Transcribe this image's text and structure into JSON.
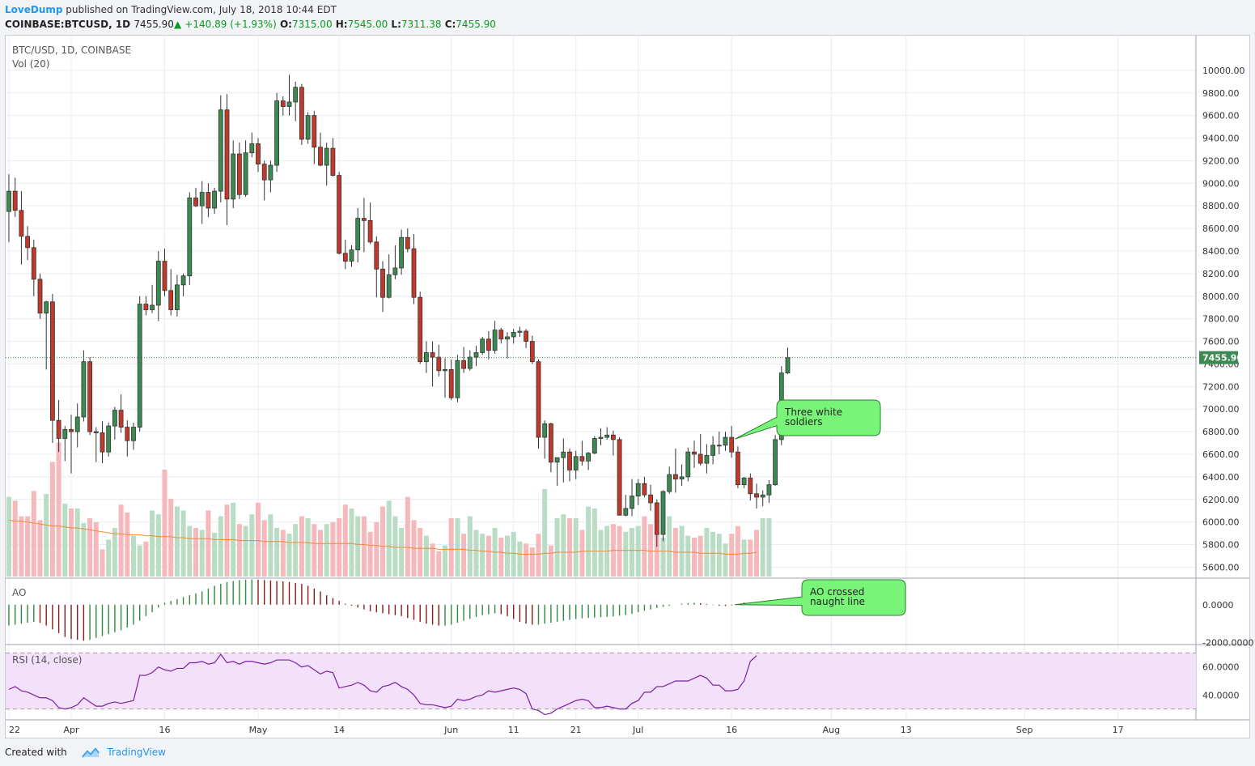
{
  "header": {
    "author": "LoveDump",
    "published_text": "published on TradingView.com, July 18, 2018 10:44 EDT"
  },
  "quote": {
    "symbol": "COINBASE:BTCUSD, 1D",
    "last": "7455.90",
    "change_arrow": "▲",
    "change": "+140.89 (+1.93%)",
    "o_label": "O:",
    "o": "7315.00",
    "h_label": "H:",
    "h": "7545.00",
    "l_label": "L:",
    "l": "7311.38",
    "c_label": "C:",
    "c": "7455.90"
  },
  "footer": {
    "created_with": "Created with",
    "brand": "TradingView"
  },
  "colors": {
    "up": "#3c8a52",
    "down": "#c0392b",
    "vol_up": "#b8dcc4",
    "vol_down": "#f5b8bc",
    "vol_ma": "#f08a3b",
    "rsi_line": "#7b1fa2",
    "rsi_band": "#f3e1fb",
    "callout_fill": "#78f578",
    "callout_stroke": "#2e7d32",
    "last_price_bg": "#3c8a52"
  },
  "chart_data": {
    "type": "candlestick",
    "title": "BTC/USD, 1D, COINBASE",
    "volume_label": "Vol (20)",
    "ylim": [
      5560,
      10150
    ],
    "y_ticks": [
      5600,
      5800,
      6000,
      6200,
      6400,
      6600,
      6800,
      7000,
      7200,
      7400,
      7600,
      7800,
      8000,
      8200,
      8400,
      8600,
      8800,
      9000,
      9200,
      9400,
      9600,
      9800,
      10000
    ],
    "y_tick_labels": [
      "5600.00",
      "5800.00",
      "6000.00",
      "6200.00",
      "6400.00",
      "6600.00",
      "6800.00",
      "7000.00",
      "7200.00",
      "7400.00",
      "7600.00",
      "7800.00",
      "8000.00",
      "8200.00",
      "8400.00",
      "8600.00",
      "8800.00",
      "9000.00",
      "9200.00",
      "9400.00",
      "9600.00",
      "9800.00",
      "10000.00"
    ],
    "last_price": 7455.9,
    "last_price_label": "7455.90",
    "x_ticks": [
      {
        "label": "22",
        "index": 0
      },
      {
        "label": "Apr",
        "index": 10
      },
      {
        "label": "16",
        "index": 25
      },
      {
        "label": "May",
        "index": 40
      },
      {
        "label": "14",
        "index": 53
      },
      {
        "label": "Jun",
        "index": 71
      },
      {
        "label": "11",
        "index": 81
      },
      {
        "label": "21",
        "index": 91
      },
      {
        "label": "Jul",
        "index": 101
      },
      {
        "label": "16",
        "index": 116
      },
      {
        "label": "Aug",
        "index": 132
      },
      {
        "label": "13",
        "index": 144
      },
      {
        "label": "Sep",
        "index": 163
      },
      {
        "label": "17",
        "index": 178
      }
    ],
    "candles": [
      [
        8750,
        9080,
        8480,
        8930
      ],
      [
        8930,
        9050,
        8700,
        8760
      ],
      [
        8760,
        8930,
        8280,
        8530
      ],
      [
        8530,
        8620,
        8320,
        8430
      ],
      [
        8430,
        8500,
        8000,
        8150
      ],
      [
        8150,
        8200,
        7800,
        7850
      ],
      [
        7850,
        7960,
        7350,
        7950
      ],
      [
        7950,
        8020,
        6700,
        6900
      ],
      [
        6900,
        7080,
        6620,
        6740
      ],
      [
        6740,
        6850,
        6540,
        6820
      ],
      [
        6820,
        6950,
        6430,
        6800
      ],
      [
        6800,
        7050,
        6660,
        6930
      ],
      [
        6930,
        7520,
        6890,
        7420
      ],
      [
        7420,
        7460,
        6770,
        6800
      ],
      [
        6800,
        6840,
        6530,
        6790
      ],
      [
        6790,
        6890,
        6520,
        6620
      ],
      [
        6620,
        6880,
        6580,
        6850
      ],
      [
        6850,
        7020,
        6730,
        6990
      ],
      [
        6990,
        7130,
        6790,
        6840
      ],
      [
        6840,
        6900,
        6580,
        6720
      ],
      [
        6720,
        6880,
        6640,
        6840
      ],
      [
        6840,
        8000,
        6800,
        7930
      ],
      [
        7930,
        8000,
        7830,
        7880
      ],
      [
        7880,
        8100,
        7850,
        7920
      ],
      [
        7920,
        8400,
        7780,
        8310
      ],
      [
        8310,
        8420,
        8000,
        8050
      ],
      [
        8050,
        8240,
        7830,
        7880
      ],
      [
        7880,
        8190,
        7820,
        8100
      ],
      [
        8100,
        8200,
        8000,
        8180
      ],
      [
        8180,
        8920,
        8100,
        8870
      ],
      [
        8870,
        8960,
        8790,
        8800
      ],
      [
        8800,
        9020,
        8640,
        8920
      ],
      [
        8920,
        9000,
        8700,
        8780
      ],
      [
        8780,
        8960,
        8730,
        8930
      ],
      [
        8930,
        9780,
        8830,
        9650
      ],
      [
        9650,
        9790,
        8630,
        8860
      ],
      [
        8860,
        9380,
        8780,
        9260
      ],
      [
        9260,
        9360,
        8860,
        8900
      ],
      [
        8900,
        9380,
        8880,
        9270
      ],
      [
        9270,
        9450,
        9230,
        9350
      ],
      [
        9350,
        9400,
        9100,
        9170
      ],
      [
        9170,
        9200,
        8850,
        9030
      ],
      [
        9030,
        9200,
        8920,
        9160
      ],
      [
        9160,
        9800,
        9100,
        9730
      ],
      [
        9730,
        9770,
        9600,
        9680
      ],
      [
        9680,
        9960,
        9600,
        9720
      ],
      [
        9720,
        9900,
        9550,
        9850
      ],
      [
        9850,
        9880,
        9340,
        9390
      ],
      [
        9390,
        9630,
        9350,
        9600
      ],
      [
        9600,
        9640,
        9170,
        9320
      ],
      [
        9320,
        9450,
        9150,
        9160
      ],
      [
        9160,
        9360,
        8980,
        9310
      ],
      [
        9310,
        9400,
        9060,
        9070
      ],
      [
        9070,
        9100,
        8370,
        8380
      ],
      [
        8380,
        8500,
        8240,
        8310
      ],
      [
        8310,
        8450,
        8260,
        8410
      ],
      [
        8410,
        8780,
        8300,
        8690
      ],
      [
        8690,
        8870,
        8390,
        8670
      ],
      [
        8670,
        8830,
        8460,
        8480
      ],
      [
        8480,
        8530,
        7990,
        8240
      ],
      [
        8240,
        8310,
        7860,
        7990
      ],
      [
        7990,
        8370,
        7980,
        8190
      ],
      [
        8190,
        8450,
        8150,
        8250
      ],
      [
        8250,
        8590,
        8190,
        8520
      ],
      [
        8520,
        8600,
        8390,
        8420
      ],
      [
        8420,
        8550,
        7930,
        7990
      ],
      [
        7990,
        8040,
        7400,
        7420
      ],
      [
        7420,
        7600,
        7320,
        7500
      ],
      [
        7500,
        7600,
        7200,
        7460
      ],
      [
        7460,
        7570,
        7290,
        7340
      ],
      [
        7340,
        7450,
        7100,
        7350
      ],
      [
        7350,
        7440,
        7080,
        7100
      ],
      [
        7100,
        7480,
        7060,
        7430
      ],
      [
        7430,
        7550,
        7320,
        7360
      ],
      [
        7360,
        7520,
        7340,
        7460
      ],
      [
        7460,
        7560,
        7380,
        7500
      ],
      [
        7500,
        7640,
        7480,
        7620
      ],
      [
        7620,
        7690,
        7440,
        7520
      ],
      [
        7520,
        7780,
        7490,
        7700
      ],
      [
        7700,
        7720,
        7580,
        7620
      ],
      [
        7620,
        7680,
        7450,
        7640
      ],
      [
        7640,
        7710,
        7580,
        7680
      ],
      [
        7680,
        7730,
        7640,
        7690
      ],
      [
        7690,
        7710,
        7540,
        7600
      ],
      [
        7600,
        7650,
        7400,
        7420
      ],
      [
        7420,
        7440,
        6650,
        6750
      ],
      [
        6750,
        6900,
        6560,
        6870
      ],
      [
        6870,
        6880,
        6440,
        6530
      ],
      [
        6530,
        6560,
        6320,
        6570
      ],
      [
        6570,
        6740,
        6350,
        6620
      ],
      [
        6620,
        6650,
        6360,
        6460
      ],
      [
        6460,
        6630,
        6380,
        6580
      ],
      [
        6580,
        6720,
        6500,
        6540
      ],
      [
        6540,
        6620,
        6460,
        6610
      ],
      [
        6610,
        6760,
        6600,
        6740
      ],
      [
        6740,
        6830,
        6680,
        6750
      ],
      [
        6750,
        6840,
        6730,
        6770
      ],
      [
        6770,
        6810,
        6590,
        6730
      ],
      [
        6730,
        6750,
        6060,
        6060
      ],
      [
        6060,
        6240,
        6050,
        6120
      ],
      [
        6120,
        6380,
        6050,
        6230
      ],
      [
        6230,
        6380,
        6150,
        6340
      ],
      [
        6340,
        6400,
        6220,
        6240
      ],
      [
        6240,
        6330,
        6100,
        6170
      ],
      [
        6170,
        6200,
        5780,
        5890
      ],
      [
        5890,
        6280,
        5830,
        6270
      ],
      [
        6270,
        6490,
        6250,
        6420
      ],
      [
        6420,
        6650,
        6260,
        6380
      ],
      [
        6380,
        6510,
        6320,
        6400
      ],
      [
        6400,
        6660,
        6360,
        6620
      ],
      [
        6620,
        6720,
        6480,
        6600
      ],
      [
        6600,
        6780,
        6500,
        6520
      ],
      [
        6520,
        6690,
        6430,
        6590
      ],
      [
        6590,
        6760,
        6510,
        6680
      ],
      [
        6680,
        6800,
        6600,
        6680
      ],
      [
        6680,
        6800,
        6630,
        6750
      ],
      [
        6750,
        6850,
        6570,
        6620
      ],
      [
        6620,
        6670,
        6300,
        6330
      ],
      [
        6330,
        6400,
        6300,
        6390
      ],
      [
        6390,
        6430,
        6190,
        6250
      ],
      [
        6250,
        6340,
        6120,
        6220
      ],
      [
        6220,
        6280,
        6140,
        6240
      ],
      [
        6240,
        6370,
        6170,
        6330
      ],
      [
        6330,
        6770,
        6320,
        6730
      ],
      [
        6730,
        7380,
        6680,
        7320
      ],
      [
        7320,
        7545,
        7311,
        7456
      ]
    ],
    "volume": [
      0.82,
      0.78,
      0.62,
      0.62,
      0.88,
      0.58,
      0.85,
      1.18,
      1.38,
      0.75,
      0.7,
      0.7,
      0.55,
      0.6,
      0.56,
      0.28,
      0.38,
      0.5,
      0.74,
      0.66,
      0.42,
      0.32,
      0.36,
      0.68,
      0.64,
      1.1,
      0.8,
      0.72,
      0.68,
      0.52,
      0.5,
      0.48,
      0.68,
      0.45,
      0.62,
      0.74,
      0.76,
      0.54,
      0.52,
      0.64,
      0.76,
      0.58,
      0.64,
      0.5,
      0.48,
      0.44,
      0.54,
      0.62,
      0.6,
      0.54,
      0.48,
      0.54,
      0.56,
      0.6,
      0.74,
      0.7,
      0.62,
      0.62,
      0.46,
      0.56,
      0.72,
      0.78,
      0.62,
      0.5,
      0.82,
      0.58,
      0.5,
      0.42,
      0.34,
      0.26,
      0.32,
      0.6,
      0.6,
      0.44,
      0.62,
      0.48,
      0.44,
      0.42,
      0.5,
      0.4,
      0.42,
      0.46,
      0.36,
      0.34,
      0.3,
      0.44,
      0.9,
      0.32,
      0.6,
      0.64,
      0.6,
      0.6,
      0.48,
      0.72,
      0.7,
      0.48,
      0.52,
      0.54,
      0.52,
      0.46,
      0.5,
      0.52,
      0.62,
      0.54,
      0.46,
      0.4,
      0.62,
      0.5,
      0.52,
      0.42,
      0.4,
      0.42,
      0.5,
      0.46,
      0.44,
      0.34,
      0.44,
      0.52,
      0.38,
      0.38,
      0.48,
      0.6,
      0.6
    ],
    "volume_ma": [
      0.58,
      0.57,
      0.57,
      0.56,
      0.55,
      0.54,
      0.53,
      0.52,
      0.52,
      0.51,
      0.5,
      0.5,
      0.49,
      0.48,
      0.47,
      0.46,
      0.45,
      0.44,
      0.44,
      0.43,
      0.43,
      0.43,
      0.42,
      0.42,
      0.41,
      0.41,
      0.41,
      0.4,
      0.4,
      0.39,
      0.39,
      0.39,
      0.39,
      0.38,
      0.38,
      0.38,
      0.38,
      0.37,
      0.37,
      0.37,
      0.37,
      0.36,
      0.36,
      0.36,
      0.36,
      0.35,
      0.35,
      0.35,
      0.35,
      0.34,
      0.34,
      0.34,
      0.34,
      0.34,
      0.34,
      0.34,
      0.33,
      0.33,
      0.32,
      0.32,
      0.31,
      0.31,
      0.3,
      0.3,
      0.3,
      0.29,
      0.29,
      0.29,
      0.29,
      0.28,
      0.28,
      0.28,
      0.28,
      0.28,
      0.27,
      0.27,
      0.26,
      0.26,
      0.25,
      0.25,
      0.24,
      0.24,
      0.23,
      0.23,
      0.23,
      0.23,
      0.24,
      0.24,
      0.25,
      0.25,
      0.25,
      0.25,
      0.26,
      0.26,
      0.26,
      0.26,
      0.26,
      0.27,
      0.27,
      0.27,
      0.27,
      0.27,
      0.27,
      0.26,
      0.26,
      0.26,
      0.26,
      0.25,
      0.25,
      0.25,
      0.25,
      0.24,
      0.24,
      0.24,
      0.24,
      0.23,
      0.23,
      0.23,
      0.24,
      0.24,
      0.25
    ],
    "ao": {
      "label": "AO",
      "ylim": [
        -2100,
        1400
      ],
      "y_ticks": [
        0,
        -2000
      ],
      "y_tick_labels": [
        "0.0000",
        "-2000.0000"
      ],
      "values": [
        -1100,
        -1050,
        -1000,
        -950,
        -900,
        -950,
        -1100,
        -1300,
        -1500,
        -1700,
        -1800,
        -1850,
        -1900,
        -1850,
        -1750,
        -1650,
        -1550,
        -1450,
        -1350,
        -1200,
        -1050,
        -850,
        -600,
        -400,
        -150,
        100,
        200,
        300,
        400,
        500,
        600,
        700,
        850,
        1000,
        1100,
        1200,
        1250,
        1300,
        1320,
        1330,
        1320,
        1300,
        1280,
        1250,
        1230,
        1200,
        1150,
        1100,
        1000,
        850,
        700,
        500,
        350,
        200,
        50,
        -50,
        -150,
        -250,
        -350,
        -400,
        -450,
        -500,
        -550,
        -600,
        -700,
        -800,
        -900,
        -1000,
        -1050,
        -1100,
        -1100,
        -1050,
        -950,
        -850,
        -750,
        -650,
        -550,
        -500,
        -450,
        -500,
        -600,
        -750,
        -900,
        -1000,
        -1050,
        -1050,
        -1000,
        -950,
        -900,
        -850,
        -800,
        -750,
        -720,
        -700,
        -680,
        -660,
        -640,
        -620,
        -580,
        -540,
        -480,
        -400,
        -320,
        -250,
        -180,
        -120,
        -60,
        0,
        50,
        80,
        100,
        80,
        40,
        -20,
        -60,
        -70,
        -40,
        40,
        120
      ]
    },
    "rsi": {
      "label": "RSI (14, close)",
      "ylim": [
        24,
        76
      ],
      "band": [
        30,
        70
      ],
      "y_ticks": [
        40,
        60
      ],
      "y_tick_labels": [
        "40.0000",
        "60.0000"
      ],
      "values": [
        44,
        46,
        43,
        42,
        40,
        38,
        38,
        36,
        31,
        30,
        31,
        33,
        38,
        35,
        32,
        32,
        34,
        35,
        34,
        35,
        36,
        54,
        54,
        56,
        60,
        58,
        57,
        59,
        59,
        63,
        63,
        64,
        62,
        63,
        69,
        63,
        64,
        62,
        64,
        64,
        63,
        62,
        63,
        65,
        65,
        65,
        63,
        60,
        61,
        58,
        55,
        57,
        56,
        45,
        46,
        47,
        49,
        47,
        43,
        42,
        46,
        47,
        49,
        46,
        44,
        40,
        34,
        33,
        33,
        32,
        31,
        32,
        37,
        36,
        37,
        39,
        40,
        43,
        42,
        43,
        44,
        45,
        44,
        41,
        30,
        29,
        26,
        27,
        30,
        32,
        34,
        36,
        37,
        36,
        31,
        31,
        32,
        31,
        30,
        30,
        34,
        36,
        42,
        42,
        46,
        46,
        48,
        50,
        50,
        50,
        52,
        54,
        52,
        47,
        47,
        43,
        43,
        44,
        50,
        64,
        68
      ]
    },
    "annotations": [
      {
        "text_lines": [
          "Three white",
          "soldiers"
        ],
        "target_index": 116,
        "target_value": 6735
      },
      {
        "text_lines": [
          "AO crossed",
          "naught line"
        ],
        "target_index": 116,
        "target_value": 0
      }
    ]
  }
}
